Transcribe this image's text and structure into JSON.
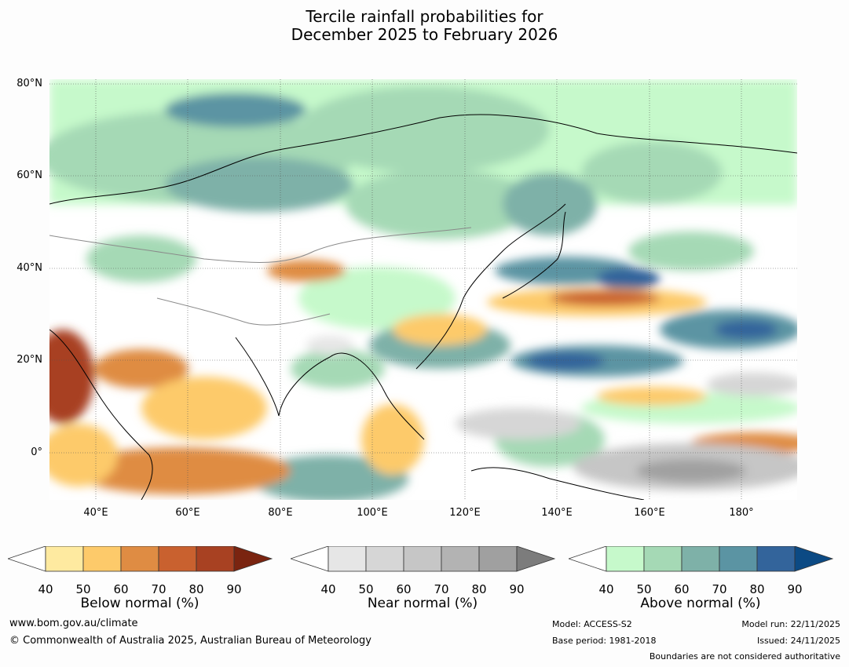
{
  "title": {
    "line1": "Tercile rainfall probabilities for",
    "line2": "December 2025 to February 2026"
  },
  "map": {
    "lat_labels": [
      "80°N",
      "60°N",
      "40°N",
      "20°N",
      "0°"
    ],
    "lon_labels": [
      "40°E",
      "60°E",
      "80°E",
      "100°E",
      "120°E",
      "140°E",
      "160°E",
      "180°"
    ]
  },
  "colorbars": [
    {
      "id": "below",
      "label": "Below normal (%)",
      "ticks": [
        "40",
        "50",
        "60",
        "70",
        "80",
        "90"
      ],
      "colors": [
        "#ffffff",
        "#feeaa0",
        "#fdca6a",
        "#df8c43",
        "#c9612f",
        "#a84122",
        "#7a2410"
      ]
    },
    {
      "id": "near",
      "label": "Near normal (%)",
      "ticks": [
        "40",
        "50",
        "60",
        "70",
        "80",
        "90"
      ],
      "colors": [
        "#ffffff",
        "#e6e6e6",
        "#d6d6d6",
        "#c6c6c6",
        "#b3b3b3",
        "#a0a0a0",
        "#7c7c7c"
      ]
    },
    {
      "id": "above",
      "label": "Above normal (%)",
      "ticks": [
        "40",
        "50",
        "60",
        "70",
        "80",
        "90"
      ],
      "colors": [
        "#ffffff",
        "#c6f9cb",
        "#a5d9b5",
        "#7eb1a8",
        "#5b94a3",
        "#33649b",
        "#0c4a84"
      ]
    }
  ],
  "footer": {
    "website": "www.bom.gov.au/climate",
    "copyright": "© Commonwealth of Australia 2025, Australian Bureau of Meteorology",
    "model": "Model: ACCESS-S2",
    "base_period": "Base period: 1981-2018",
    "model_run": "Model run: 22/11/2025",
    "issued": "Issued: 24/11/2025",
    "boundaries": "Boundaries are not considered authoritative"
  }
}
